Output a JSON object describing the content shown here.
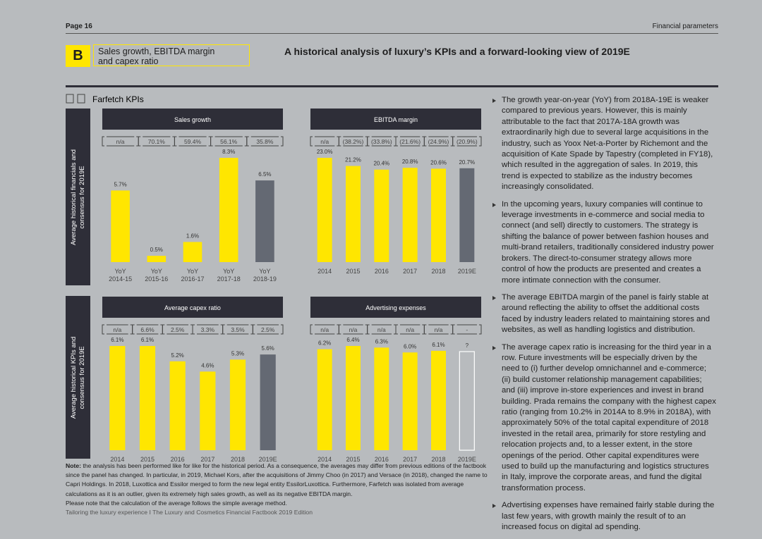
{
  "header": {
    "page": "Page 16",
    "section": "Financial parameters",
    "badge": "B",
    "box_title": [
      "Sales growth, EBITDA margin",
      "and capex ratio"
    ],
    "title": "A historical analysis of luxury’s KPIs and a forward-looking view of 2019E"
  },
  "left": {
    "heading": "Farfetch KPIs",
    "side_labels": [
      [
        "Average historical financials and",
        "consensus for 2019E"
      ],
      [
        "Average historical KPIs and",
        "consensus for 2019E"
      ]
    ]
  },
  "charts": [
    {
      "type": "bar",
      "title": "Sales growth",
      "categories": [
        [
          "YoY",
          "2014-15"
        ],
        [
          "YoY",
          "2015-16"
        ],
        [
          "YoY",
          "2016-17"
        ],
        [
          "YoY",
          "2017-18"
        ],
        [
          "YoY",
          "2018-19"
        ]
      ],
      "brackets": [
        "n/a",
        "70.1%",
        "59.4%",
        "56.1%",
        "35.8%"
      ],
      "values": [
        5.7,
        0.5,
        1.6,
        8.3,
        6.5
      ],
      "value_labels": [
        "5.7%",
        "0.5%",
        "1.6%",
        "8.3%",
        "6.5%"
      ],
      "colors": [
        "#ffe600",
        "#ffe600",
        "#ffe600",
        "#ffe600",
        "#646973"
      ]
    },
    {
      "type": "bar",
      "title": "EBITDA margin",
      "categories": [
        "2014",
        "2015",
        "2016",
        "2017",
        "2018",
        "2019E"
      ],
      "brackets": [
        "n/a",
        "(38.2%)",
        "(33.8%)",
        "(21.6%)",
        "(24.9%)",
        "(20.9%)"
      ],
      "values": [
        23.0,
        21.2,
        20.4,
        20.8,
        20.6,
        20.7
      ],
      "value_labels": [
        "23.0%",
        "21.2%",
        "20.4%",
        "20.8%",
        "20.6%",
        "20.7%"
      ],
      "colors": [
        "#ffe600",
        "#ffe600",
        "#ffe600",
        "#ffe600",
        "#ffe600",
        "#646973"
      ]
    },
    {
      "type": "bar",
      "title": "Average capex ratio",
      "categories": [
        "2014",
        "2015",
        "2016",
        "2017",
        "2018",
        "2019E"
      ],
      "brackets": [
        "n/a",
        "6.6%",
        "2.5%",
        "3.3%",
        "3.5%",
        "2.5%"
      ],
      "values": [
        6.1,
        6.1,
        5.2,
        4.6,
        5.3,
        5.6
      ],
      "value_labels": [
        "6.1%",
        "6.1%",
        "5.2%",
        "4.6%",
        "5.3%",
        "5.6%"
      ],
      "colors": [
        "#ffe600",
        "#ffe600",
        "#ffe600",
        "#ffe600",
        "#ffe600",
        "#646973"
      ]
    },
    {
      "type": "bar",
      "title": "Advertising expenses",
      "categories": [
        "2014",
        "2015",
        "2016",
        "2017",
        "2018",
        "2019E"
      ],
      "brackets": [
        "n/a",
        "n/a",
        "n/a",
        "n/a",
        "n/a",
        "-"
      ],
      "values": [
        6.2,
        6.4,
        6.3,
        6.0,
        6.1,
        null
      ],
      "value_labels": [
        "6.2%",
        "6.4%",
        "6.3%",
        "6.0%",
        "6.1%",
        "?"
      ],
      "colors": [
        "#ffe600",
        "#ffe600",
        "#ffe600",
        "#ffe600",
        "#ffe600",
        "#ffffff"
      ]
    }
  ],
  "bullets": [
    "The growth year-on-year (YoY) from 2018A-19E is weaker compared to previous years. However, this is mainly attributable to the fact that 2017A-18A growth was extraordinarily high due to several large acquisitions in the industry, such as Yoox Net-a-Porter by Richemont and the acquisition of Kate Spade by Tapestry (completed in FY18), which resulted in the aggregation of sales. In 2019, this trend is expected to stabilize as the industry becomes increasingly consolidated.",
    "In the upcoming years, luxury companies will continue to leverage investments in e-commerce and social media to connect (and sell) directly to customers. The strategy is shifting the balance of power between fashion houses and multi-brand retailers, traditionally considered industry power brokers. The direct-to-consumer strategy allows more control of how the products are presented and creates a more intimate connection with the consumer.",
    "The average EBITDA margin of the panel is fairly stable at around reflecting the ability to offset the additional costs faced by industry leaders related to maintaining stores and websites, as well as handling logistics and distribution.",
    "The average capex ratio is increasing for the third year in a row. Future investments will be especially driven by the need to (i) further develop omnichannel and e-commerce; (ii) build customer relationship management capabilities; and (iii) improve in-store experiences and invest in brand building. Prada remains the company with the highest capex ratio (ranging from 10.2% in 2014A to 8.9% in 2018A), with approximately 50% of the total capital expenditure of 2018 invested in the retail area, primarily for store restyling and relocation projects and, to a lesser extent, in the store openings of the period. Other capital expenditures were used to build up the manufacturing and logistics structures in Italy, improve the corporate areas, and fund the digital transformation process.",
    "Advertising expenses have remained fairly stable during the last few years, with growth mainly the result of to an increased focus on digital ad spending."
  ],
  "note": {
    "label": "Note:",
    "text": "the analysis has been performed like for like for the historical period. As a consequence, the averages may differ from previous editions of the factbook since the panel has changed. In particular, in 2019, Michael Kors, after the acquisitions of Jimmy Choo (in 2017) and Versace (in 2018), changed the name to Capri Holdings. In 2018, Luxottica and Essilor merged to form the new legal entity EssilorLuxottica. Furthermore, Farfetch was isolated from average calculations as it is an outlier, given its extremely high sales growth, as well as its negative EBITDA margin.",
    "extra": "Please note that the calculation of the average follows the simple average method.",
    "footer": "Tailoring the luxury experience I The Luxury and Cosmetics Financial Factbook 2019 Edition"
  }
}
